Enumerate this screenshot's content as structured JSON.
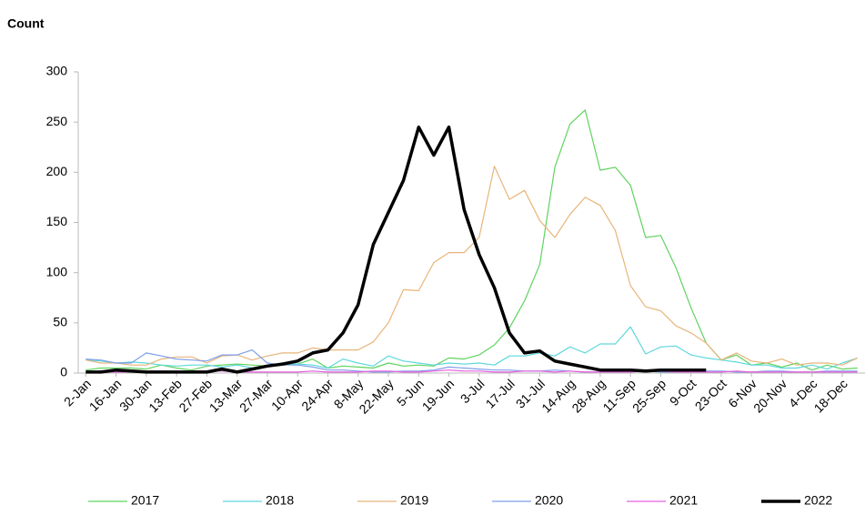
{
  "chart_data": {
    "type": "line",
    "y_label": "Count",
    "categories": [
      "2-Jan",
      null,
      "16-Jan",
      null,
      "30-Jan",
      null,
      "13-Feb",
      null,
      "27-Feb",
      null,
      "13-Mar",
      null,
      "27-Mar",
      null,
      "10-Apr",
      null,
      "24-Apr",
      null,
      "8-May",
      null,
      "22-May",
      null,
      "5-Jun",
      null,
      "19-Jun",
      null,
      "3-Jul",
      null,
      "17-Jul",
      null,
      "31-Jul",
      null,
      "14-Aug",
      null,
      "28-Aug",
      null,
      "11-Sep",
      null,
      "25-Sep",
      null,
      "9-Oct",
      null,
      "23-Oct",
      null,
      "6-Nov",
      null,
      "20-Nov",
      null,
      "4-Dec",
      null,
      "18-Dec",
      null
    ],
    "ylim": [
      0,
      300
    ],
    "yticks": [
      0,
      50,
      100,
      150,
      200,
      250,
      300
    ],
    "grid": false,
    "legend": "bottom",
    "series": [
      {
        "name": "2017",
        "color": "#5fd35f",
        "width": 1.2,
        "values": [
          3,
          5,
          5,
          5,
          4,
          8,
          5,
          3,
          7,
          8,
          9,
          8,
          7,
          8,
          9,
          14,
          5,
          7,
          6,
          5,
          10,
          7,
          8,
          7,
          15,
          14,
          18,
          28,
          45,
          72,
          108,
          205,
          248,
          262,
          202,
          205,
          187,
          135,
          137,
          105,
          65,
          30,
          13,
          18,
          8,
          10,
          6,
          10,
          3,
          8,
          4,
          5
        ]
      },
      {
        "name": "2018",
        "color": "#5fd8dc",
        "width": 1.2,
        "values": [
          13,
          12,
          10,
          11,
          10,
          8,
          7,
          8,
          8,
          6,
          8,
          5,
          6,
          10,
          9,
          8,
          5,
          14,
          10,
          7,
          17,
          12,
          10,
          8,
          10,
          9,
          10,
          8,
          17,
          17,
          20,
          17,
          26,
          20,
          29,
          29,
          46,
          19,
          26,
          27,
          18,
          15,
          13,
          11,
          8,
          8,
          5,
          5,
          8,
          4,
          10,
          15
        ]
      },
      {
        "name": "2019",
        "color": "#e8b57a",
        "width": 1.2,
        "values": [
          13,
          10,
          10,
          8,
          8,
          14,
          16,
          16,
          10,
          17,
          18,
          13,
          17,
          20,
          20,
          25,
          23,
          23,
          23,
          31,
          50,
          83,
          82,
          110,
          120,
          120,
          135,
          206,
          173,
          182,
          152,
          135,
          158,
          175,
          167,
          142,
          87,
          66,
          62,
          47,
          40,
          30,
          13,
          20,
          12,
          10,
          14,
          8,
          10,
          10,
          8,
          15
        ]
      },
      {
        "name": "2020",
        "color": "#7f9fe8",
        "width": 1.2,
        "values": [
          14,
          13,
          10,
          10,
          20,
          17,
          14,
          13,
          12,
          18,
          18,
          23,
          10,
          8,
          8,
          6,
          3,
          3,
          2,
          1,
          1,
          2,
          2,
          3,
          6,
          5,
          4,
          3,
          3,
          2,
          2,
          3,
          2,
          1,
          1,
          1,
          2,
          2,
          1,
          1,
          2,
          2,
          2,
          1,
          1,
          2,
          2,
          1,
          1,
          2,
          2,
          2
        ]
      },
      {
        "name": "2021",
        "color": "#e85fe0",
        "width": 1.2,
        "values": [
          1,
          1,
          1,
          1,
          1,
          1,
          1,
          2,
          2,
          2,
          1,
          1,
          1,
          1,
          1,
          2,
          1,
          1,
          1,
          2,
          2,
          1,
          1,
          2,
          3,
          2,
          2,
          1,
          1,
          2,
          2,
          1,
          2,
          1,
          1,
          1,
          1,
          2,
          2,
          1,
          1,
          1,
          1,
          2,
          1,
          1,
          1,
          1,
          1,
          1,
          1,
          1
        ]
      },
      {
        "name": "2022",
        "color": "#000000",
        "width": 3.5,
        "values": [
          1,
          1,
          3,
          2,
          1,
          1,
          1,
          1,
          1,
          4,
          1,
          4,
          7,
          9,
          12,
          20,
          23,
          40,
          68,
          128,
          160,
          192,
          245,
          217,
          245,
          163,
          118,
          85,
          40,
          20,
          22,
          12,
          9,
          6,
          3,
          3,
          3,
          2,
          3,
          3,
          3,
          3,
          null,
          null,
          null,
          null,
          null,
          null,
          null,
          null,
          null,
          null
        ]
      }
    ]
  }
}
